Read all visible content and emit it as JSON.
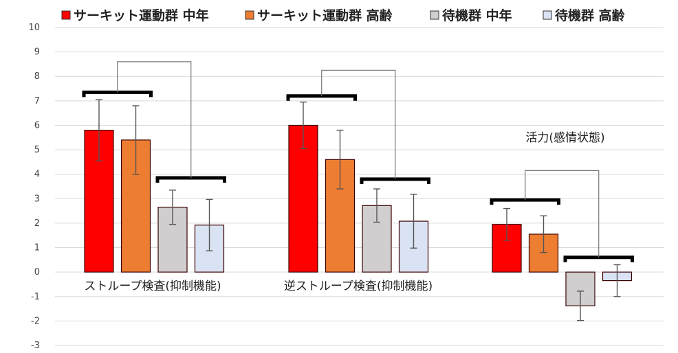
{
  "chart_data": {
    "type": "bar",
    "categories": [
      "ストループ検査(抑制機能)",
      "逆ストループ検査(抑制機能)",
      "活力(感情状態)"
    ],
    "series": [
      {
        "name": "サーキット運動群 中年",
        "color": "#ff0000",
        "values": [
          5.8,
          6.0,
          1.95
        ],
        "errors": [
          1.25,
          0.95,
          0.65
        ]
      },
      {
        "name": "サーキット運動群 高齢",
        "color": "#ed7d31",
        "values": [
          5.4,
          4.6,
          1.55
        ],
        "errors": [
          1.4,
          1.2,
          0.75
        ]
      },
      {
        "name": "待機群 中年",
        "color": "#d0cece",
        "values": [
          2.65,
          2.72,
          -1.38
        ],
        "errors": [
          0.7,
          0.68,
          0.6
        ]
      },
      {
        "name": "待機群 高齢",
        "color": "#dae3f3",
        "values": [
          1.92,
          2.08,
          -0.35
        ],
        "errors": [
          1.05,
          1.1,
          0.65
        ]
      }
    ],
    "ylim": [
      -3,
      10
    ],
    "yticks": [
      -3,
      -2,
      -1,
      0,
      1,
      2,
      3,
      4,
      5,
      6,
      7,
      8,
      9,
      10
    ],
    "grid": true,
    "legend_position": "top",
    "bar_edge_color": "#3a0000"
  }
}
